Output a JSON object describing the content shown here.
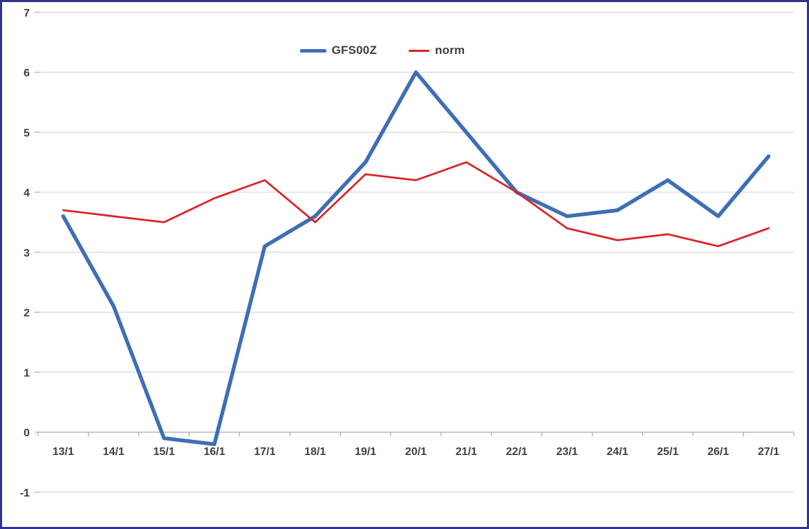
{
  "chart_data": {
    "type": "line",
    "categories": [
      "13/1",
      "14/1",
      "15/1",
      "16/1",
      "17/1",
      "18/1",
      "19/1",
      "20/1",
      "21/1",
      "22/1",
      "23/1",
      "24/1",
      "25/1",
      "26/1",
      "27/1"
    ],
    "series": [
      {
        "name": "GFS00Z",
        "color": "#3E6FB4",
        "stroke_width": 5.5,
        "values": [
          3.6,
          2.1,
          -0.1,
          -0.2,
          3.1,
          3.6,
          4.5,
          6.0,
          5.0,
          4.0,
          3.6,
          3.7,
          4.2,
          3.6,
          4.6
        ]
      },
      {
        "name": "norm",
        "color": "#DC2127",
        "stroke_width": 2.75,
        "values": [
          3.7,
          3.6,
          3.5,
          3.9,
          4.2,
          3.5,
          4.3,
          4.2,
          4.5,
          4.0,
          3.4,
          3.2,
          3.3,
          3.1,
          3.4
        ]
      }
    ],
    "title": "",
    "xlabel": "",
    "ylabel": "",
    "ylim": [
      -1,
      7
    ],
    "y_ticks": [
      7,
      6,
      5,
      4,
      3,
      2,
      1,
      0,
      -1
    ],
    "grid": true,
    "legend_position": "top-center"
  },
  "colors": {
    "frame_border": "#2E3192",
    "gridline": "#D9D9D9",
    "axis_line": "#ADADAD",
    "tick_text": "#404040",
    "background": "#FFFFFF"
  }
}
